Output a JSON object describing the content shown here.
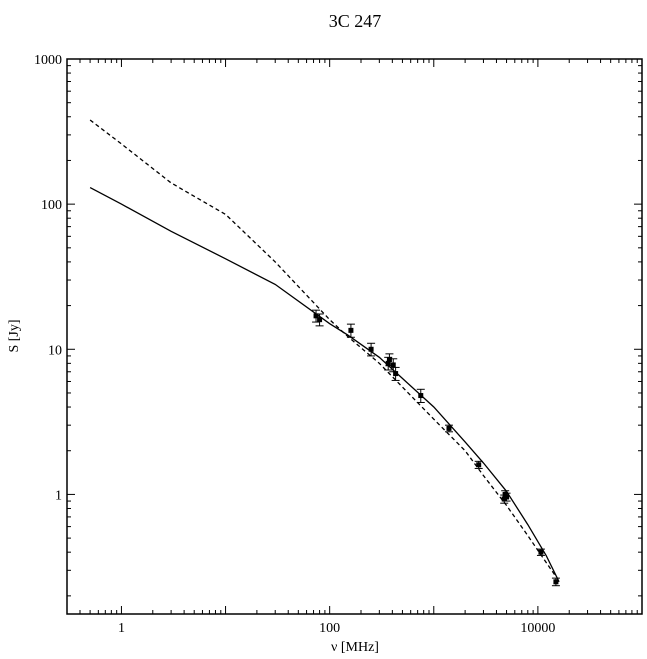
{
  "chart_data": {
    "type": "scatter",
    "title": "3C 247",
    "xlabel": "ν [MHz]",
    "ylabel": "S [Jy]",
    "xscale": "log",
    "yscale": "log",
    "xlim": [
      0.3,
      100000
    ],
    "ylim": [
      0.15,
      1000
    ],
    "x_ticks": [
      {
        "value": 1,
        "label": "1"
      },
      {
        "value": 100,
        "label": "100"
      },
      {
        "value": 10000,
        "label": "10000"
      }
    ],
    "y_ticks": [
      {
        "value": 1,
        "label": "1"
      },
      {
        "value": 10,
        "label": "10"
      },
      {
        "value": 100,
        "label": "100"
      },
      {
        "value": 1000,
        "label": "1000"
      }
    ],
    "grid": false,
    "legend": "none",
    "points": [
      {
        "x": 74,
        "y": 17.0,
        "err": 1.6
      },
      {
        "x": 80,
        "y": 16.0,
        "err": 1.5
      },
      {
        "x": 160,
        "y": 13.5,
        "err": 1.4
      },
      {
        "x": 250,
        "y": 10.0,
        "err": 1.0
      },
      {
        "x": 365,
        "y": 8.0,
        "err": 0.8
      },
      {
        "x": 375,
        "y": 8.5,
        "err": 0.8
      },
      {
        "x": 408,
        "y": 7.8,
        "err": 0.8
      },
      {
        "x": 430,
        "y": 6.8,
        "err": 0.7
      },
      {
        "x": 750,
        "y": 4.8,
        "err": 0.5
      },
      {
        "x": 1400,
        "y": 2.85,
        "err": 0.15
      },
      {
        "x": 2700,
        "y": 1.6,
        "err": 0.09
      },
      {
        "x": 4750,
        "y": 0.93,
        "err": 0.06
      },
      {
        "x": 4850,
        "y": 1.0,
        "err": 0.06
      },
      {
        "x": 5000,
        "y": 0.96,
        "err": 0.06
      },
      {
        "x": 10700,
        "y": 0.4,
        "err": 0.02
      },
      {
        "x": 14900,
        "y": 0.25,
        "err": 0.015
      }
    ],
    "series": [
      {
        "style": "solid",
        "color": "#000000",
        "x": [
          0.5,
          1,
          3,
          10,
          30,
          100,
          150,
          300,
          500,
          1000,
          2000,
          3000,
          5000,
          8000,
          12000,
          16000
        ],
        "y": [
          130,
          100,
          65,
          42,
          28,
          15,
          12.5,
          8.8,
          6.3,
          4.0,
          2.3,
          1.65,
          1.05,
          0.62,
          0.38,
          0.25
        ]
      },
      {
        "style": "dashed",
        "color": "#000000",
        "x": [
          0.5,
          1,
          3,
          10,
          30,
          100,
          150,
          300,
          500,
          1000,
          2000,
          3000,
          5000,
          8000,
          12000,
          15000
        ],
        "y": [
          380,
          260,
          140,
          85,
          40,
          16,
          12.2,
          8.0,
          5.5,
          3.3,
          2.0,
          1.35,
          0.84,
          0.52,
          0.34,
          0.27
        ]
      }
    ]
  }
}
